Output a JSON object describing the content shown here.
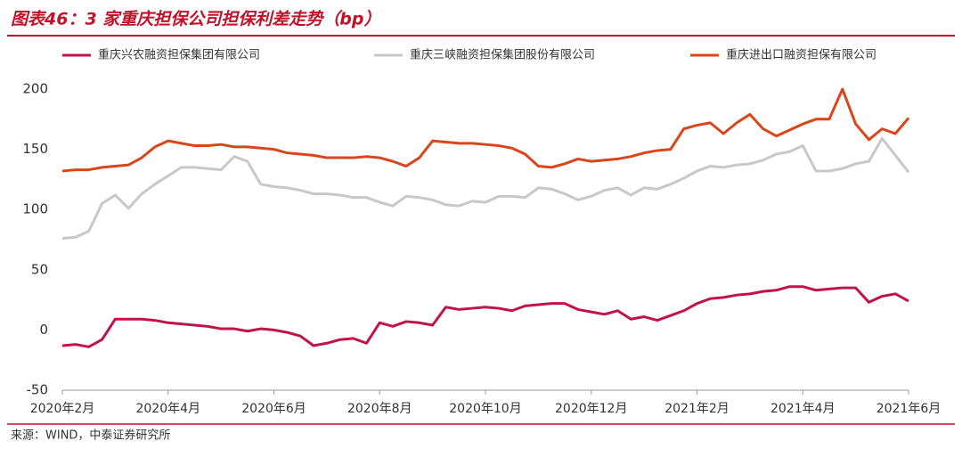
{
  "chart_data": {
    "type": "line",
    "title": "图表46：3 家重庆担保公司担保利差走势（bp）",
    "source": "来源：WIND，中泰证券研究所",
    "categories": [
      "2020年2月",
      null,
      null,
      null,
      null,
      null,
      null,
      null,
      "2020年4月",
      null,
      null,
      null,
      null,
      null,
      null,
      null,
      "2020年6月",
      null,
      null,
      null,
      null,
      null,
      null,
      null,
      "2020年8月",
      null,
      null,
      null,
      null,
      null,
      null,
      null,
      "2020年10月",
      null,
      null,
      null,
      null,
      null,
      null,
      null,
      "2020年12月",
      null,
      null,
      null,
      null,
      null,
      null,
      null,
      "2021年2月",
      null,
      null,
      null,
      null,
      null,
      null,
      null,
      "2021年4月",
      null,
      null,
      null,
      null,
      null,
      null,
      null,
      "2021年6月"
    ],
    "series": [
      {
        "name": "重庆兴农融资担保集团有限公司",
        "color": "#c0134a",
        "values": [
          -13,
          -12,
          -14,
          -8,
          9,
          9,
          9,
          8,
          6,
          5,
          4,
          3,
          1,
          1,
          -1,
          1,
          0,
          -2,
          -5,
          -13,
          -11,
          -8,
          -7,
          -11,
          6,
          3,
          7,
          6,
          4,
          19,
          17,
          18,
          19,
          18,
          16,
          20,
          21,
          22,
          22,
          17,
          15,
          13,
          16,
          9,
          11,
          8,
          12,
          16,
          22,
          26,
          27,
          29,
          30,
          32,
          33,
          36,
          36,
          33,
          34,
          35,
          35,
          23,
          28,
          30,
          24
        ]
      },
      {
        "name": "重庆三峡融资担保集团股份有限公司",
        "color": "#c8c8c8",
        "values": [
          76,
          77,
          82,
          105,
          112,
          101,
          113,
          121,
          128,
          135,
          135,
          134,
          133,
          144,
          140,
          121,
          119,
          118,
          116,
          113,
          113,
          112,
          110,
          110,
          106,
          103,
          111,
          110,
          108,
          104,
          103,
          107,
          106,
          111,
          111,
          110,
          118,
          117,
          113,
          108,
          111,
          116,
          118,
          112,
          118,
          117,
          121,
          126,
          132,
          136,
          135,
          137,
          138,
          141,
          146,
          148,
          153,
          132,
          132,
          134,
          138,
          140,
          159,
          145,
          131
        ]
      },
      {
        "name": "重庆进出口融资担保有限公司",
        "color": "#d9461a",
        "values": [
          132,
          133,
          133,
          135,
          136,
          137,
          143,
          152,
          157,
          155,
          153,
          153,
          154,
          152,
          152,
          151,
          150,
          147,
          146,
          145,
          143,
          143,
          143,
          144,
          143,
          140,
          136,
          143,
          157,
          156,
          155,
          155,
          154,
          153,
          151,
          146,
          136,
          135,
          138,
          142,
          140,
          141,
          142,
          144,
          147,
          149,
          150,
          167,
          170,
          172,
          163,
          172,
          179,
          167,
          161,
          166,
          171,
          175,
          175,
          200,
          171,
          158,
          167,
          163,
          176
        ]
      }
    ],
    "ylim": [
      -50,
      200
    ],
    "yticks": [
      -50,
      0,
      50,
      100,
      150,
      200
    ],
    "grid": false
  }
}
